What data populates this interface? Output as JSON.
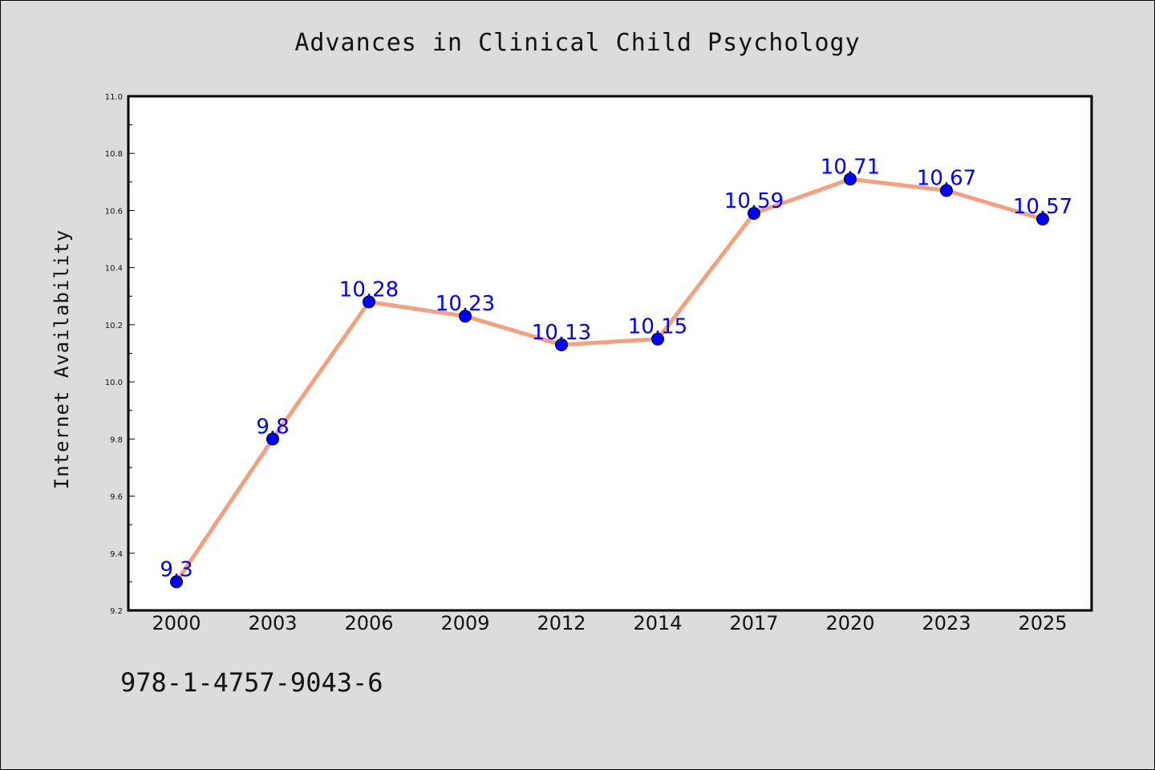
{
  "chart_data": {
    "type": "line",
    "title": "Advances in Clinical Child Psychology",
    "xlabel": "",
    "ylabel": "Internet Availability",
    "categories": [
      "2000",
      "2003",
      "2006",
      "2009",
      "2012",
      "2014",
      "2017",
      "2020",
      "2023",
      "2025"
    ],
    "series": [
      {
        "values": [
          9.3,
          9.8,
          10.28,
          10.23,
          10.13,
          10.15,
          10.59,
          10.71,
          10.67,
          10.57
        ],
        "labels": [
          "9.3",
          "9.8",
          "10.28",
          "10.23",
          "10.13",
          "10.15",
          "10.59",
          "10.71",
          "10.67",
          "10.57"
        ],
        "line_color": "#f4a07e",
        "marker_color": "#0000ff"
      }
    ],
    "ylim": [
      9.2,
      11.0
    ],
    "yticks": [
      "9.2",
      "9.4",
      "9.6",
      "9.8",
      "10.0",
      "10.2",
      "10.4",
      "10.6",
      "10.8",
      "11.0"
    ],
    "grid": false,
    "data_labels": true
  },
  "footer": {
    "isbn": "978-1-4757-9043-6"
  },
  "colors": {
    "background": "#dcdcdc",
    "plot_background": "#ffffff",
    "line": "#f4a07e",
    "marker": "#0000ff",
    "data_label": "#0000ff"
  }
}
